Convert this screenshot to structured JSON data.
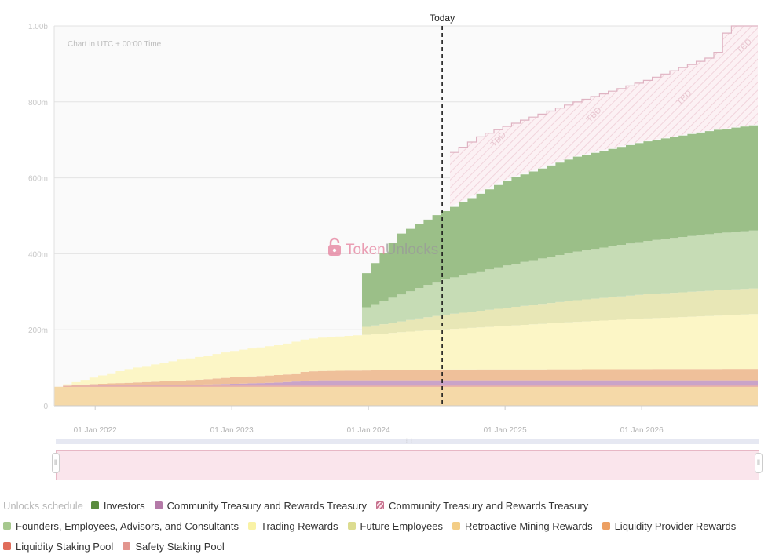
{
  "chart_data": {
    "type": "area",
    "title": "",
    "annotation": "Chart in UTC + 00:00 Time",
    "marker_label": "Today",
    "marker_date": 2024.54,
    "future_label": "TBD",
    "watermark": "TokenUnlocks",
    "watermark_parts": [
      "Token",
      "Unlocks"
    ],
    "y_ticks": [
      {
        "value": 0,
        "label": "0"
      },
      {
        "value": 200,
        "label": "200m"
      },
      {
        "value": 400,
        "label": "400m"
      },
      {
        "value": 600,
        "label": "600m"
      },
      {
        "value": 800,
        "label": "800m"
      },
      {
        "value": 1000,
        "label": "1.00b"
      }
    ],
    "x_ticks": [
      {
        "value": 2022.0,
        "label": "01 Jan 2022"
      },
      {
        "value": 2023.0,
        "label": "01 Jan 2023"
      },
      {
        "value": 2024.0,
        "label": "01 Jan 2024"
      },
      {
        "value": 2025.0,
        "label": "01 Jan 2025"
      },
      {
        "value": 2026.0,
        "label": "01 Jan 2026"
      }
    ],
    "xlim": [
      2021.7,
      2026.85
    ],
    "ylim": [
      0,
      1000
    ],
    "stacked": true,
    "series": [
      {
        "name": "Retroactive Mining Rewards",
        "color": "#f5d9a8",
        "points": [
          [
            2021.7,
            50
          ],
          [
            2026.85,
            50
          ]
        ]
      },
      {
        "name": "Safety Staking Pool",
        "color": "#e5a39b",
        "points": [
          [
            2021.7,
            0
          ],
          [
            2021.78,
            3
          ],
          [
            2026.85,
            3
          ]
        ]
      },
      {
        "name": "Community Treasury and Rewards Treasury",
        "color": "#c9a3c9",
        "points": [
          [
            2021.7,
            0
          ],
          [
            2022.7,
            2
          ],
          [
            2023.3,
            8
          ],
          [
            2023.6,
            14
          ],
          [
            2024.2,
            14
          ],
          [
            2026.85,
            14
          ]
        ]
      },
      {
        "name": "Liquidity Provider Rewards",
        "color": "#efc09a",
        "points": [
          [
            2021.7,
            0
          ],
          [
            2022.0,
            4
          ],
          [
            2022.5,
            10
          ],
          [
            2022.8,
            14
          ],
          [
            2023.0,
            17
          ],
          [
            2023.4,
            20
          ],
          [
            2023.5,
            24
          ],
          [
            2024.0,
            26
          ],
          [
            2024.3,
            28
          ],
          [
            2026.85,
            30
          ]
        ]
      },
      {
        "name": "Trading Rewards",
        "color": "#fcf6c6",
        "points": [
          [
            2021.7,
            0
          ],
          [
            2021.8,
            5
          ],
          [
            2022.2,
            35
          ],
          [
            2022.6,
            55
          ],
          [
            2023.0,
            70
          ],
          [
            2023.5,
            85
          ],
          [
            2024.0,
            95
          ],
          [
            2024.5,
            105
          ],
          [
            2025.0,
            115
          ],
          [
            2025.5,
            125
          ],
          [
            2026.0,
            133
          ],
          [
            2026.85,
            145
          ]
        ]
      },
      {
        "name": "Future Employees",
        "color": "#e8e7b6",
        "points": [
          [
            2021.7,
            0
          ],
          [
            2023.9,
            0
          ],
          [
            2023.93,
            20
          ],
          [
            2024.2,
            28
          ],
          [
            2024.5,
            38
          ],
          [
            2025.0,
            48
          ],
          [
            2025.5,
            57
          ],
          [
            2026.0,
            64
          ],
          [
            2026.85,
            68
          ]
        ]
      },
      {
        "name": "Founders, Employees, Advisors, and Consultants",
        "color": "#c6dcb5",
        "points": [
          [
            2021.7,
            0
          ],
          [
            2023.9,
            0
          ],
          [
            2023.93,
            50
          ],
          [
            2024.2,
            70
          ],
          [
            2024.5,
            92
          ],
          [
            2025.0,
            112
          ],
          [
            2025.5,
            128
          ],
          [
            2026.0,
            140
          ],
          [
            2026.5,
            150
          ],
          [
            2026.85,
            153
          ]
        ]
      },
      {
        "name": "Investors",
        "color": "#9bbf88",
        "points": [
          [
            2021.7,
            0
          ],
          [
            2023.9,
            0
          ],
          [
            2023.93,
            83
          ],
          [
            2024.2,
            160
          ],
          [
            2024.54,
            180
          ],
          [
            2025.0,
            225
          ],
          [
            2025.5,
            250
          ],
          [
            2026.0,
            262
          ],
          [
            2026.5,
            272
          ],
          [
            2026.85,
            278
          ]
        ]
      }
    ],
    "tbd_upper": [
      [
        2024.54,
        655
      ],
      [
        2024.8,
        710
      ],
      [
        2025.0,
        738
      ],
      [
        2025.5,
        800
      ],
      [
        2026.0,
        855
      ],
      [
        2026.5,
        920
      ],
      [
        2026.58,
        950
      ],
      [
        2026.6,
        1000
      ],
      [
        2026.85,
        1000
      ]
    ],
    "tbd_labels": [
      {
        "x": 2024.92,
        "y": 680
      },
      {
        "x": 2025.62,
        "y": 745
      },
      {
        "x": 2026.28,
        "y": 790
      },
      {
        "x": 2026.72,
        "y": 925
      }
    ]
  },
  "legend": {
    "title": "Unlocks schedule",
    "rows": [
      [
        {
          "label": "Investors",
          "color": "#5a8c3e",
          "hatched": false
        },
        {
          "label": "Community Treasury and Rewards Treasury",
          "color": "#b47aa8",
          "hatched": false
        },
        {
          "label": "Community Treasury and Rewards Treasury",
          "color": "#c7728f",
          "hatched": true
        }
      ],
      [
        {
          "label": "Founders, Employees, Advisors, and Consultants",
          "color": "#a6c88e",
          "hatched": false
        },
        {
          "label": "Trading Rewards",
          "color": "#f9f2a5",
          "hatched": false
        },
        {
          "label": "Future Employees",
          "color": "#dcdc90",
          "hatched": false
        },
        {
          "label": "Retroactive Mining Rewards",
          "color": "#f3cd86",
          "hatched": false
        },
        {
          "label": "Liquidity Provider Rewards",
          "color": "#ec9f62",
          "hatched": false
        }
      ],
      [
        {
          "label": "Liquidity Staking Pool",
          "color": "#e06c5a",
          "hatched": false
        },
        {
          "label": "Safety Staking Pool",
          "color": "#e2958e",
          "hatched": false
        }
      ]
    ]
  },
  "navigator": {
    "grip_icon": "grip-icon",
    "handle_icon": "handle-grip-icon"
  }
}
